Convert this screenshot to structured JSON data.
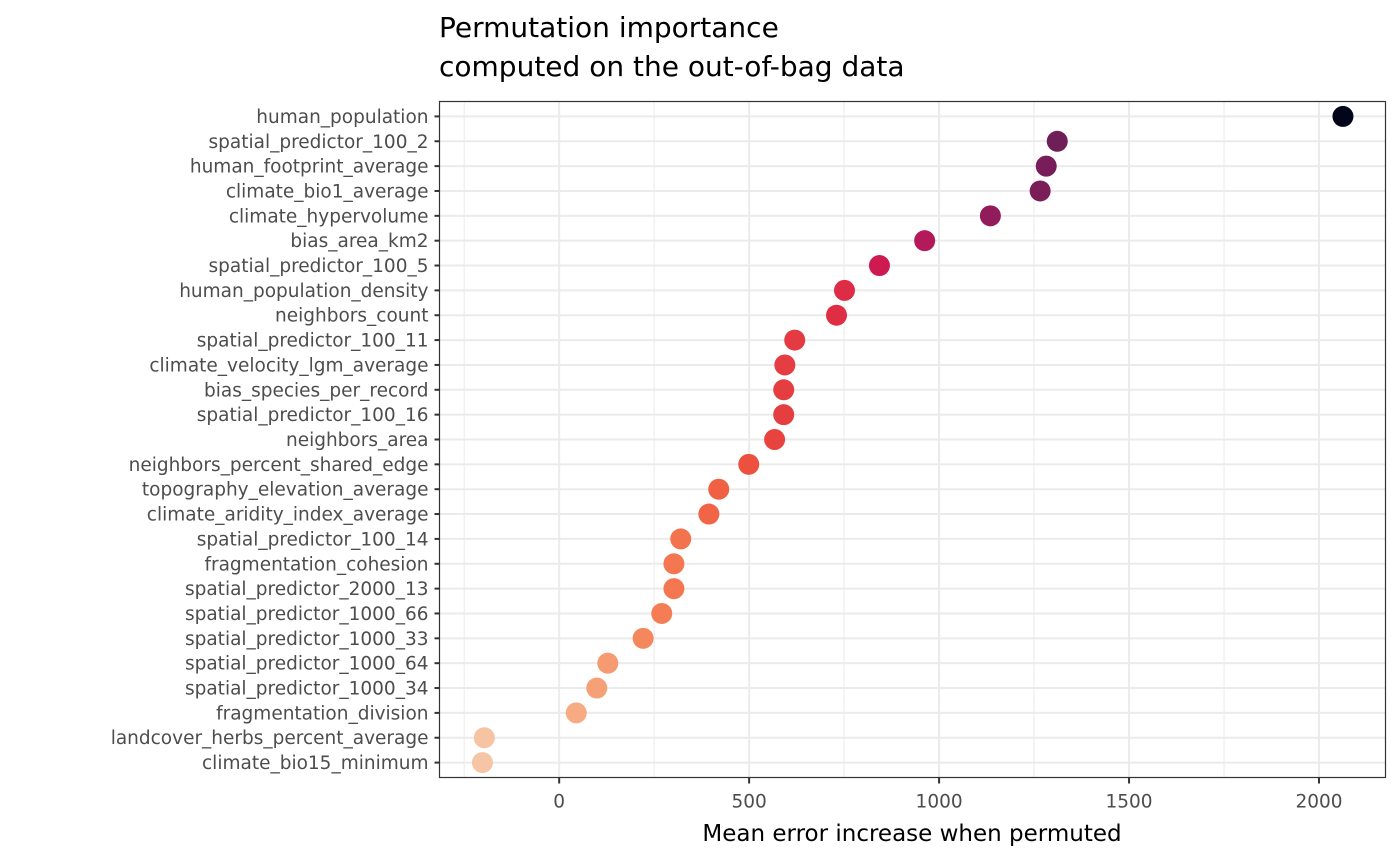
{
  "chart_data": {
    "type": "scatter",
    "title": [
      "Permutation importance",
      "computed on the out-of-bag data"
    ],
    "xlabel": "Mean error increase when permuted",
    "ylabel": "",
    "xlim": [
      -315,
      2175
    ],
    "xticks": [
      0,
      500,
      1000,
      1500,
      2000
    ],
    "xtick_labels": [
      "0",
      "500",
      "1000",
      "1500",
      "2000"
    ],
    "x_minor_ticks": [
      -250,
      250,
      750,
      1250,
      1750
    ],
    "grid": true,
    "legend": "none",
    "color_palette": "rocket (dark = high importance, light = low importance)",
    "categories": [
      "human_population",
      "spatial_predictor_100_2",
      "human_footprint_average",
      "climate_bio1_average",
      "climate_hypervolume",
      "bias_area_km2",
      "spatial_predictor_100_5",
      "human_population_density",
      "neighbors_count",
      "spatial_predictor_100_11",
      "climate_velocity_lgm_average",
      "bias_species_per_record",
      "spatial_predictor_100_16",
      "neighbors_area",
      "neighbors_percent_shared_edge",
      "topography_elevation_average",
      "climate_aridity_index_average",
      "spatial_predictor_100_14",
      "fragmentation_cohesion",
      "spatial_predictor_2000_13",
      "spatial_predictor_1000_66",
      "spatial_predictor_1000_33",
      "spatial_predictor_1000_64",
      "spatial_predictor_1000_34",
      "fragmentation_division",
      "landcover_herbs_percent_average",
      "climate_bio15_minimum"
    ],
    "values": [
      2063,
      1311,
      1282,
      1266,
      1135,
      962,
      843,
      751,
      730,
      620,
      594,
      591,
      591,
      567,
      499,
      420,
      394,
      320,
      302,
      302,
      270,
      221,
      128,
      99,
      45,
      -197,
      -202
    ],
    "colors": [
      "#03051a",
      "#6e1f57",
      "#771d59",
      "#7b1d59",
      "#921c5b",
      "#b41a59",
      "#cd1a50",
      "#dd2c45",
      "#df2e44",
      "#e43a41",
      "#e53d41",
      "#e53e41",
      "#e53e41",
      "#e8433f",
      "#ec513f",
      "#f06043",
      "#f16446",
      "#f3734e",
      "#f47752",
      "#f47752",
      "#f47d55",
      "#f5875d",
      "#f59a71",
      "#f5a077",
      "#f6ab82",
      "#f6c4a3",
      "#f6c5a5"
    ]
  }
}
